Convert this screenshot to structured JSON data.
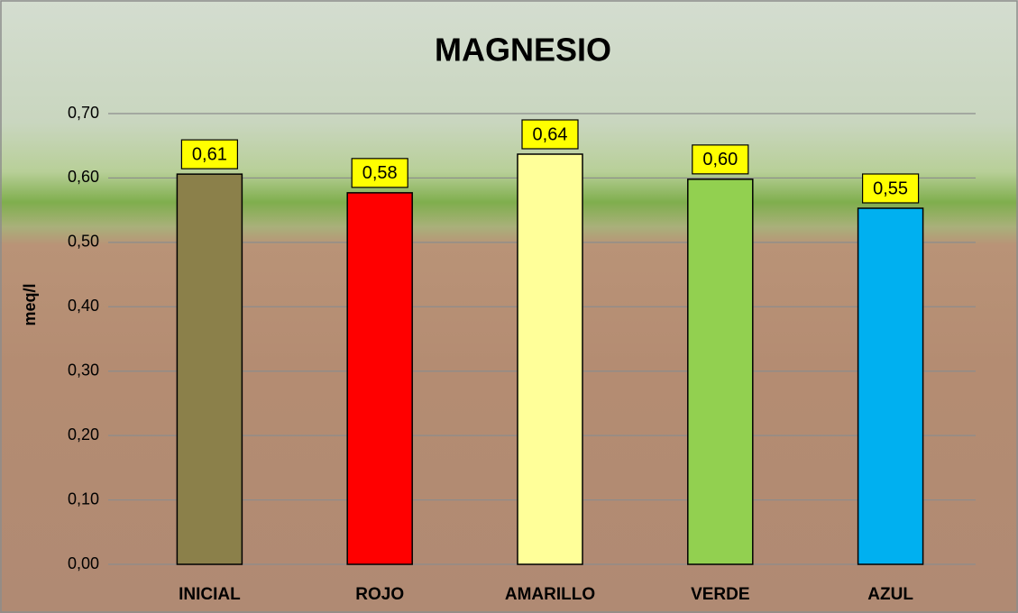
{
  "chart_data": {
    "type": "bar",
    "title": "MAGNESIO",
    "y_label": "meq/l",
    "categories": [
      "INICIAL",
      "ROJO",
      "AMARILLO",
      "VERDE",
      "AZUL"
    ],
    "values": [
      0.606,
      0.577,
      0.637,
      0.598,
      0.553
    ],
    "value_labels": [
      "0,61",
      "0,58",
      "0,64",
      "0,60",
      "0,55"
    ],
    "colors": [
      "#8b804a",
      "#ff0000",
      "#ffff99",
      "#92d050",
      "#00b0f0"
    ],
    "ylim": [
      0,
      0.7
    ],
    "yticks": [
      {
        "value": 0,
        "label": "0,00"
      },
      {
        "value": 0.1,
        "label": "0,10"
      },
      {
        "value": 0.2,
        "label": "0,20"
      },
      {
        "value": 0.3,
        "label": "0,30"
      },
      {
        "value": 0.4,
        "label": "0,40"
      },
      {
        "value": 0.5,
        "label": "0,50"
      },
      {
        "value": 0.6,
        "label": "0,60"
      },
      {
        "value": 0.7,
        "label": "0,70"
      }
    ],
    "grid": true
  }
}
